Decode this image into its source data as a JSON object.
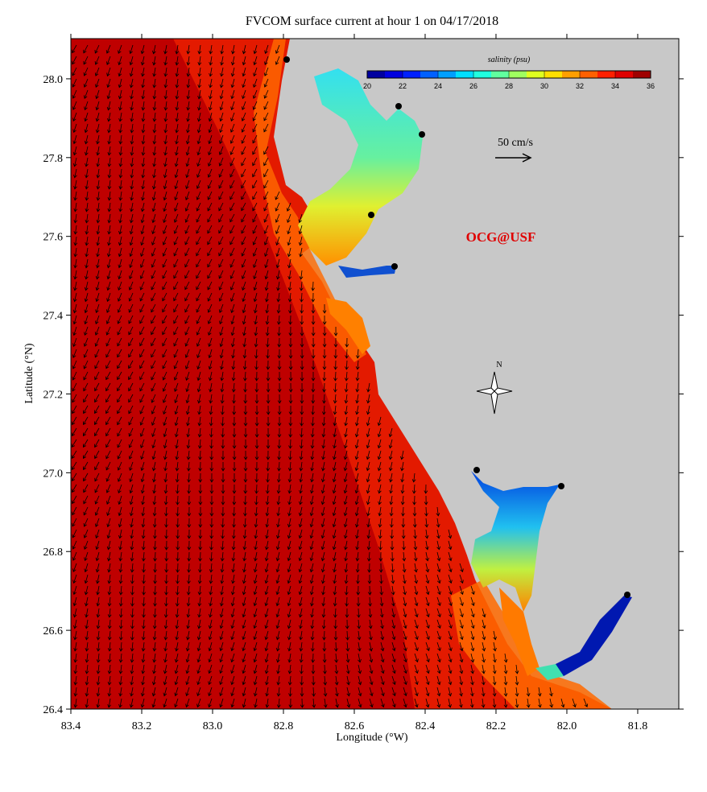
{
  "title": "FVCOM surface current at hour 1 on 04/17/2018",
  "map": {
    "x_label": "Longitude (°W)",
    "y_label": "Latitude (°N)",
    "xlim": [
      83.4,
      81.684
    ],
    "ylim": [
      26.4,
      28.102
    ],
    "xticks": [
      83.4,
      83.2,
      {
        "value": 83,
        "label": "83.0"
      },
      82.8,
      82.6,
      82.4,
      82.2,
      {
        "value": 82,
        "label": "82.0"
      },
      81.8
    ],
    "yticks": [
      26.4,
      26.6,
      26.8,
      {
        "value": 27,
        "label": "27.0"
      },
      27.2,
      27.4,
      27.6,
      27.8,
      {
        "value": 28,
        "label": "28.0"
      }
    ],
    "land_color": "#c8c8c8",
    "offshore_color": "#bf0000",
    "nearshore_color": "#e31a00"
  },
  "colorbar": {
    "title": "salinity (psu)",
    "colormap": "jet",
    "range": [
      20,
      36
    ],
    "ticks": [
      20,
      22,
      24,
      26,
      28,
      30,
      32,
      34,
      36
    ]
  },
  "scale_label": "50 cm/s",
  "watermark": "OCG@USF",
  "compass": "N"
}
